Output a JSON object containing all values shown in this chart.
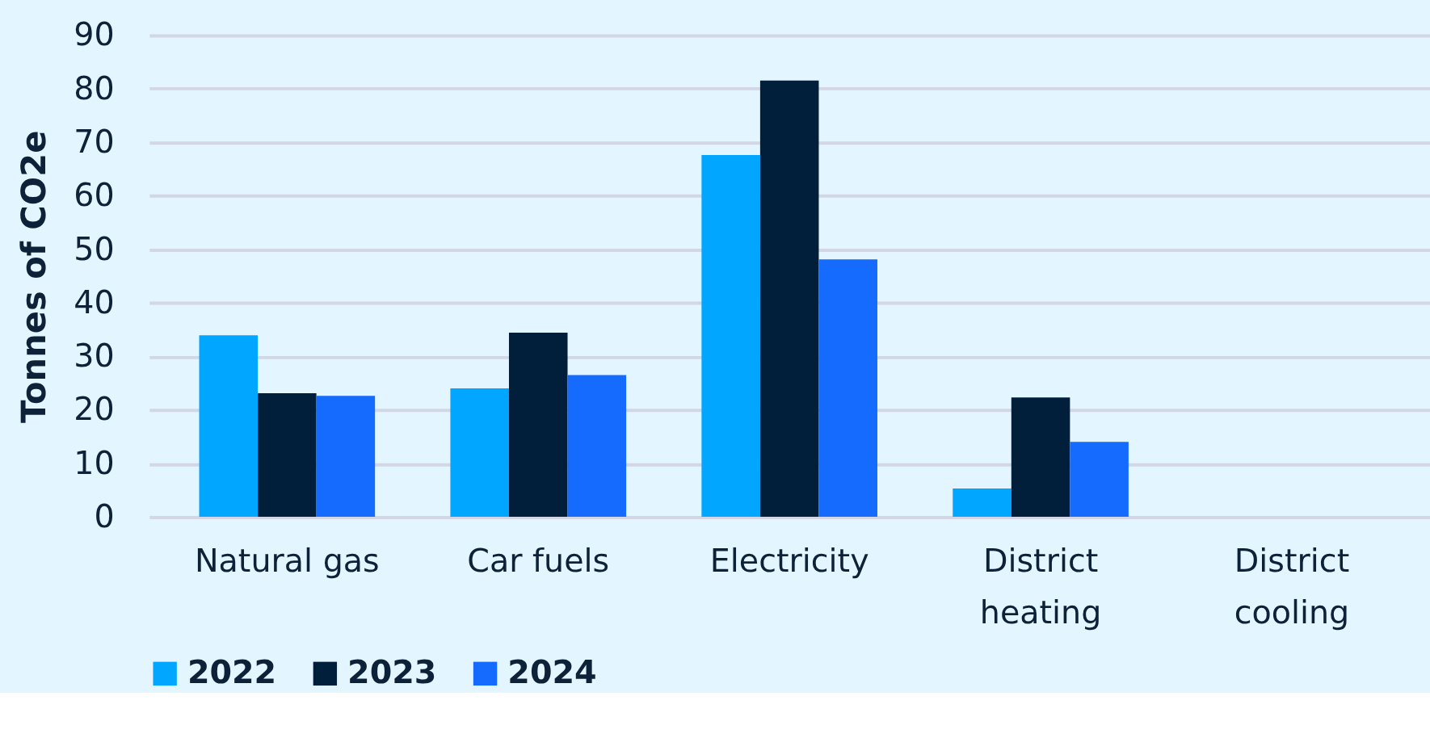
{
  "chart_data": {
    "type": "bar",
    "ylabel": "Tonnes of CO2e",
    "categories": [
      "Natural gas",
      "Car fuels",
      "Electricity",
      "District heating",
      "District cooling"
    ],
    "series": [
      {
        "name": "2022",
        "color": "#00a6ff",
        "values": [
          33.9,
          24.0,
          67.6,
          5.3,
          0
        ]
      },
      {
        "name": "2023",
        "color": "#011f3a",
        "values": [
          23.1,
          34.4,
          81.5,
          22.3,
          0
        ]
      },
      {
        "name": "2024",
        "color": "#166bff",
        "values": [
          22.6,
          26.5,
          48.1,
          14.0,
          0
        ]
      }
    ],
    "ylim": [
      0,
      90
    ],
    "yticks": [
      0,
      10,
      20,
      30,
      40,
      50,
      60,
      70,
      80,
      90
    ],
    "grid": "y",
    "legend": "bottom"
  }
}
